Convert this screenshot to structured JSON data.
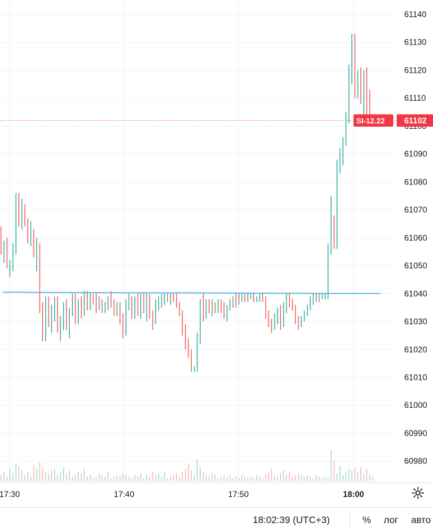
{
  "chart_data": {
    "type": "bar",
    "subtype": "ohlc-bar",
    "symbol_label": "SI-12.22",
    "last_price": "61102",
    "y_axis": {
      "ticks": [
        "61140",
        "61130",
        "61120",
        "61110",
        "61100",
        "61090",
        "61080",
        "61070",
        "61060",
        "61050",
        "61040",
        "61030",
        "61020",
        "61010",
        "61000",
        "60990",
        "60980"
      ],
      "range": [
        60975,
        61145
      ]
    },
    "x_axis": {
      "ticks": [
        "17:30",
        "17:40",
        "17:50",
        "18:00"
      ]
    },
    "bars": [
      [
        61062,
        61064,
        61054,
        61056
      ],
      [
        61056,
        61059,
        61051,
        61058
      ],
      [
        61058,
        61060,
        61049,
        61051
      ],
      [
        61049,
        61052,
        61046,
        61050
      ],
      [
        61050,
        61058,
        61048,
        61056
      ],
      [
        61056,
        61076,
        61054,
        61074
      ],
      [
        61074,
        61076,
        61064,
        61066
      ],
      [
        61066,
        61074,
        61063,
        61071
      ],
      [
        61071,
        61072,
        61064,
        61066
      ],
      [
        61066,
        61067,
        61058,
        61060
      ],
      [
        61060,
        61066,
        61057,
        61062
      ],
      [
        61062,
        61063,
        61053,
        61056
      ],
      [
        61056,
        61060,
        61048,
        61058
      ],
      [
        61058,
        61058,
        61033,
        61035
      ],
      [
        61035,
        61037,
        61023,
        61025
      ],
      [
        61025,
        61039,
        61023,
        61037
      ],
      [
        61037,
        61039,
        61028,
        61032
      ],
      [
        61032,
        61036,
        61026,
        61034
      ],
      [
        61034,
        61039,
        61030,
        61038
      ],
      [
        61038,
        61039,
        61026,
        61027
      ],
      [
        61027,
        61032,
        61023,
        61029
      ],
      [
        61029,
        61037,
        61027,
        61035
      ],
      [
        61035,
        61038,
        61027,
        61031
      ],
      [
        61031,
        61035,
        61024,
        61033
      ],
      [
        61033,
        61040,
        61032,
        61039
      ],
      [
        61039,
        61040,
        61029,
        61031
      ],
      [
        61031,
        61038,
        61029,
        61037
      ],
      [
        61037,
        61039,
        61031,
        61033
      ],
      [
        61033,
        61041,
        61032,
        61039
      ],
      [
        61039,
        61041,
        61034,
        61036
      ],
      [
        61036,
        61040,
        61034,
        61039
      ],
      [
        61039,
        61040,
        61036,
        61037
      ],
      [
        61037,
        61040,
        61033,
        61035
      ],
      [
        61035,
        61039,
        61034,
        61036
      ],
      [
        61036,
        61038,
        61033,
        61034
      ],
      [
        61034,
        61037,
        61033,
        61036
      ],
      [
        61036,
        61039,
        61034,
        61038
      ],
      [
        61038,
        61041,
        61035,
        61036
      ],
      [
        61036,
        61038,
        61032,
        61034
      ],
      [
        61034,
        61037,
        61032,
        61036
      ],
      [
        61036,
        61037,
        61029,
        61031
      ],
      [
        61031,
        61033,
        61024,
        61026
      ],
      [
        61026,
        61038,
        61025,
        61036
      ],
      [
        61036,
        61040,
        61034,
        61038
      ],
      [
        61038,
        61039,
        61031,
        61033
      ],
      [
        61033,
        61039,
        61031,
        61037
      ],
      [
        61037,
        61040,
        61032,
        61034
      ],
      [
        61034,
        61040,
        61031,
        61039
      ],
      [
        61039,
        61040,
        61033,
        61035
      ],
      [
        61035,
        61040,
        61030,
        61038
      ],
      [
        61038,
        61040,
        61031,
        61032
      ],
      [
        61032,
        61034,
        61027,
        61030
      ],
      [
        61030,
        61038,
        61029,
        61036
      ],
      [
        61036,
        61039,
        61034,
        61037
      ],
      [
        61037,
        61040,
        61035,
        61038
      ],
      [
        61038,
        61040,
        61036,
        61039
      ],
      [
        61039,
        61040,
        61037,
        61038
      ],
      [
        61038,
        61040,
        61036,
        61039
      ],
      [
        61039,
        61040,
        61037,
        61038
      ],
      [
        61038,
        61040,
        61035,
        61036
      ],
      [
        61036,
        61037,
        61032,
        61033
      ],
      [
        61033,
        61034,
        61025,
        61027
      ],
      [
        61027,
        61029,
        61020,
        61022
      ],
      [
        61022,
        61024,
        61017,
        61018
      ],
      [
        61018,
        61020,
        61012,
        61013
      ],
      [
        61013,
        61014,
        61012,
        61013
      ],
      [
        61013,
        61026,
        61012,
        61024
      ],
      [
        61024,
        61038,
        61022,
        61036
      ],
      [
        61036,
        61040,
        61030,
        61032
      ],
      [
        61032,
        61038,
        61031,
        61037
      ],
      [
        61037,
        61038,
        61033,
        61034
      ],
      [
        61034,
        61038,
        61032,
        61036
      ],
      [
        61036,
        61037,
        61033,
        61034
      ],
      [
        61034,
        61038,
        61033,
        61037
      ],
      [
        61037,
        61038,
        61033,
        61035
      ],
      [
        61035,
        61037,
        61031,
        61033
      ],
      [
        61033,
        61036,
        61030,
        61035
      ],
      [
        61035,
        61038,
        61034,
        61037
      ],
      [
        61037,
        61039,
        61035,
        61036
      ],
      [
        61036,
        61040,
        61035,
        61039
      ],
      [
        61039,
        61040,
        61036,
        61038
      ],
      [
        61038,
        61040,
        61037,
        61039
      ],
      [
        61039,
        61040,
        61037,
        61038
      ],
      [
        61038,
        61040,
        61037,
        61039
      ],
      [
        61039,
        61040,
        61038,
        61039
      ],
      [
        61039,
        61040,
        61037,
        61038
      ],
      [
        61038,
        61039,
        61037,
        61038
      ],
      [
        61038,
        61040,
        61037,
        61039
      ],
      [
        61039,
        61040,
        61037,
        61038
      ],
      [
        61038,
        61039,
        61031,
        61033
      ],
      [
        61033,
        61034,
        61028,
        61030
      ],
      [
        61030,
        61031,
        61026,
        61028
      ],
      [
        61028,
        61033,
        61027,
        61031
      ],
      [
        61031,
        61035,
        61029,
        61033
      ],
      [
        61033,
        61036,
        61027,
        61029
      ],
      [
        61029,
        61037,
        61028,
        61035
      ],
      [
        61035,
        61040,
        61033,
        61038
      ],
      [
        61038,
        61040,
        61035,
        61037
      ],
      [
        61037,
        61038,
        61034,
        61035
      ],
      [
        61035,
        61036,
        61029,
        61031
      ],
      [
        61031,
        61032,
        61027,
        61029
      ],
      [
        61029,
        61032,
        61028,
        61031
      ],
      [
        61031,
        61034,
        61030,
        61033
      ],
      [
        61033,
        61036,
        61032,
        61035
      ],
      [
        61035,
        61039,
        61034,
        61038
      ],
      [
        61038,
        61040,
        61036,
        61039
      ],
      [
        61039,
        61040,
        61037,
        61038
      ],
      [
        61038,
        61040,
        61037,
        61039
      ],
      [
        61039,
        61040,
        61038,
        61039
      ],
      [
        61039,
        61040,
        61038,
        61039
      ],
      [
        61039,
        61058,
        61038,
        61056
      ],
      [
        61056,
        61075,
        61054,
        61066
      ],
      [
        61066,
        61068,
        61056,
        61058
      ],
      [
        61058,
        61088,
        61056,
        61086
      ],
      [
        61086,
        61092,
        61083,
        61088
      ],
      [
        61088,
        61096,
        61086,
        61094
      ],
      [
        61094,
        61105,
        61093,
        61103
      ],
      [
        61103,
        61122,
        61101,
        61118
      ],
      [
        61118,
        61133,
        61115,
        61130
      ],
      [
        61130,
        61133,
        61110,
        61112
      ],
      [
        61112,
        61120,
        61110,
        61118
      ],
      [
        61118,
        61121,
        61108,
        61110
      ],
      [
        61110,
        61120,
        61103,
        61118
      ],
      [
        61118,
        61121,
        61104,
        61106
      ],
      [
        61106,
        61113,
        61101,
        61102
      ]
    ],
    "volumes": [
      4,
      6,
      3,
      8,
      5,
      11,
      9,
      7,
      4,
      6,
      3,
      10,
      8,
      12,
      9,
      6,
      5,
      7,
      8,
      4,
      6,
      9,
      5,
      7,
      3,
      4,
      6,
      5,
      8,
      3,
      4,
      2,
      3,
      5,
      4,
      3,
      6,
      2,
      3,
      4,
      3,
      5,
      4,
      3,
      2,
      4,
      3,
      5,
      2,
      4,
      3,
      6,
      4,
      5,
      3,
      6,
      2,
      3,
      4,
      5,
      3,
      6,
      8,
      11,
      7,
      4,
      14,
      9,
      6,
      4,
      3,
      5,
      4,
      2,
      3,
      4,
      3,
      4,
      2,
      3,
      2,
      4,
      3,
      2,
      3,
      2,
      4,
      3,
      2,
      5,
      6,
      8,
      4,
      3,
      5,
      7,
      4,
      6,
      3,
      4,
      5,
      4,
      3,
      4,
      3,
      2,
      4,
      3,
      2,
      3,
      2,
      20,
      13,
      5,
      10,
      4,
      6,
      8,
      7,
      9,
      6,
      9,
      5,
      8,
      4,
      3
    ],
    "trendline": {
      "from": [
        61040.5,
        1
      ],
      "to": [
        61040,
        128
      ]
    },
    "colors": {
      "up": "#26a69a",
      "down": "#ef5350",
      "trendline": "#5bb0e3",
      "price_label_bg": "#f23645"
    }
  },
  "status": {
    "clock": "18:02:39 (UTC+3)",
    "percent": "%",
    "log": "лог",
    "auto": "авто"
  },
  "icons": {
    "settings": "gear-icon"
  }
}
